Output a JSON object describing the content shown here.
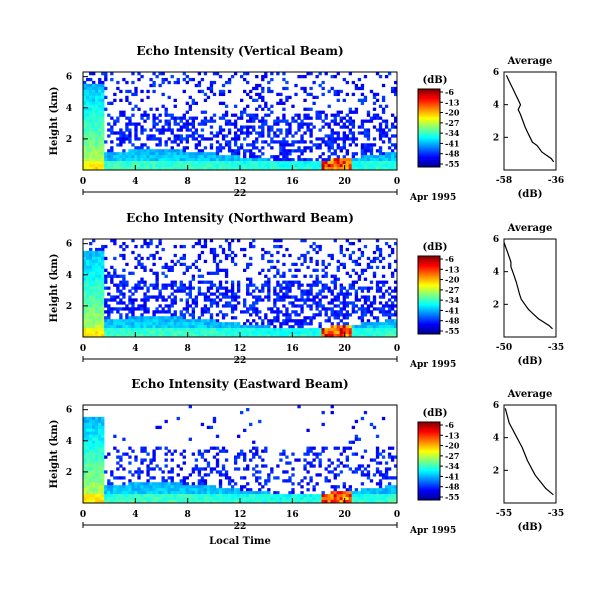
{
  "chart_data": [
    {
      "type": "heatmap",
      "title": "Echo Intensity (Vertical Beam)",
      "ylabel": "Height (km)",
      "yticks": [
        "2",
        "4",
        "6"
      ],
      "ylim": [
        0,
        6
      ],
      "xticks": [
        "0",
        "4",
        "8",
        "12",
        "16",
        "20",
        "0"
      ],
      "xlim": [
        0,
        24
      ],
      "date_label": "22",
      "date_suffix": "Apr 1995",
      "colorbar": {
        "unit": "(dB)",
        "ticks": [
          "-6",
          "-13",
          "-20",
          "-27",
          "-34",
          "-41",
          "-48",
          "-55"
        ],
        "range": [
          -55,
          -6
        ]
      },
      "profile": {
        "title": "Average",
        "xlabel": "(dB)",
        "xticks": [
          "-58",
          "-36"
        ],
        "yticks": [
          "2",
          "4",
          "6"
        ],
        "xlim": [
          -58,
          -36
        ],
        "x": [
          -57,
          -56,
          -55,
          -54,
          -53,
          -52,
          -51,
          -52,
          -51,
          -50,
          -49,
          -48,
          -47,
          -46,
          -44,
          -43,
          -42,
          -40,
          -38,
          -37
        ],
        "y": [
          5.8,
          5.5,
          5.2,
          4.9,
          4.6,
          4.3,
          4.0,
          3.7,
          3.4,
          3.0,
          2.6,
          2.3,
          2.0,
          1.7,
          1.5,
          1.3,
          1.1,
          0.9,
          0.7,
          0.5
        ]
      }
    },
    {
      "type": "heatmap",
      "title": "Echo Intensity (Northward Beam)",
      "ylabel": "Height (km)",
      "yticks": [
        "2",
        "4",
        "6"
      ],
      "ylim": [
        0,
        6
      ],
      "xticks": [
        "0",
        "4",
        "8",
        "12",
        "16",
        "20",
        "0"
      ],
      "xlim": [
        0,
        24
      ],
      "date_label": "22",
      "date_suffix": "Apr 1995",
      "colorbar": {
        "unit": "(dB)",
        "ticks": [
          "-6",
          "-13",
          "-20",
          "-27",
          "-34",
          "-41",
          "-48",
          "-55"
        ],
        "range": [
          -55,
          -6
        ]
      },
      "profile": {
        "title": "Average",
        "xlabel": "(dB)",
        "xticks": [
          "-50",
          "-35"
        ],
        "yticks": [
          "2",
          "4",
          "6"
        ],
        "xlim": [
          -50,
          -35
        ],
        "x": [
          -50,
          -49.5,
          -49,
          -48.5,
          -48,
          -48,
          -47.5,
          -47,
          -46.5,
          -46,
          -45.5,
          -45,
          -44,
          -43,
          -42,
          -41,
          -40,
          -38.5,
          -37,
          -36
        ],
        "y": [
          5.8,
          5.5,
          5.2,
          4.9,
          4.6,
          4.3,
          4.0,
          3.7,
          3.4,
          3.0,
          2.6,
          2.3,
          2.0,
          1.7,
          1.5,
          1.3,
          1.1,
          0.9,
          0.7,
          0.5
        ]
      }
    },
    {
      "type": "heatmap",
      "title": "Echo Intensity (Eastward Beam)",
      "ylabel": "Height (km)",
      "xlabel": "Local Time",
      "yticks": [
        "2",
        "4",
        "6"
      ],
      "ylim": [
        0,
        6
      ],
      "xticks": [
        "0",
        "4",
        "8",
        "12",
        "16",
        "20",
        "0"
      ],
      "xlim": [
        0,
        24
      ],
      "date_label": "22",
      "date_suffix": "Apr 1995",
      "colorbar": {
        "unit": "(dB)",
        "ticks": [
          "-6",
          "-13",
          "-20",
          "-27",
          "-34",
          "-41",
          "-48",
          "-55"
        ],
        "range": [
          -55,
          -6
        ]
      },
      "profile": {
        "title": "Average",
        "xlabel": "(dB)",
        "xticks": [
          "-55",
          "-35"
        ],
        "yticks": [
          "2",
          "4",
          "6"
        ],
        "xlim": [
          -55,
          -35
        ],
        "x": [
          -54.5,
          -54,
          -53.5,
          -53,
          -52,
          -51,
          -50,
          -49,
          -48,
          -47,
          -46,
          -45,
          -44,
          -43,
          -42,
          -41,
          -40,
          -39,
          -37.5,
          -36
        ],
        "y": [
          5.8,
          5.5,
          5.2,
          4.9,
          4.6,
          4.3,
          4.0,
          3.7,
          3.4,
          3.0,
          2.6,
          2.3,
          2.0,
          1.7,
          1.5,
          1.3,
          1.1,
          0.9,
          0.7,
          0.5
        ]
      }
    }
  ]
}
